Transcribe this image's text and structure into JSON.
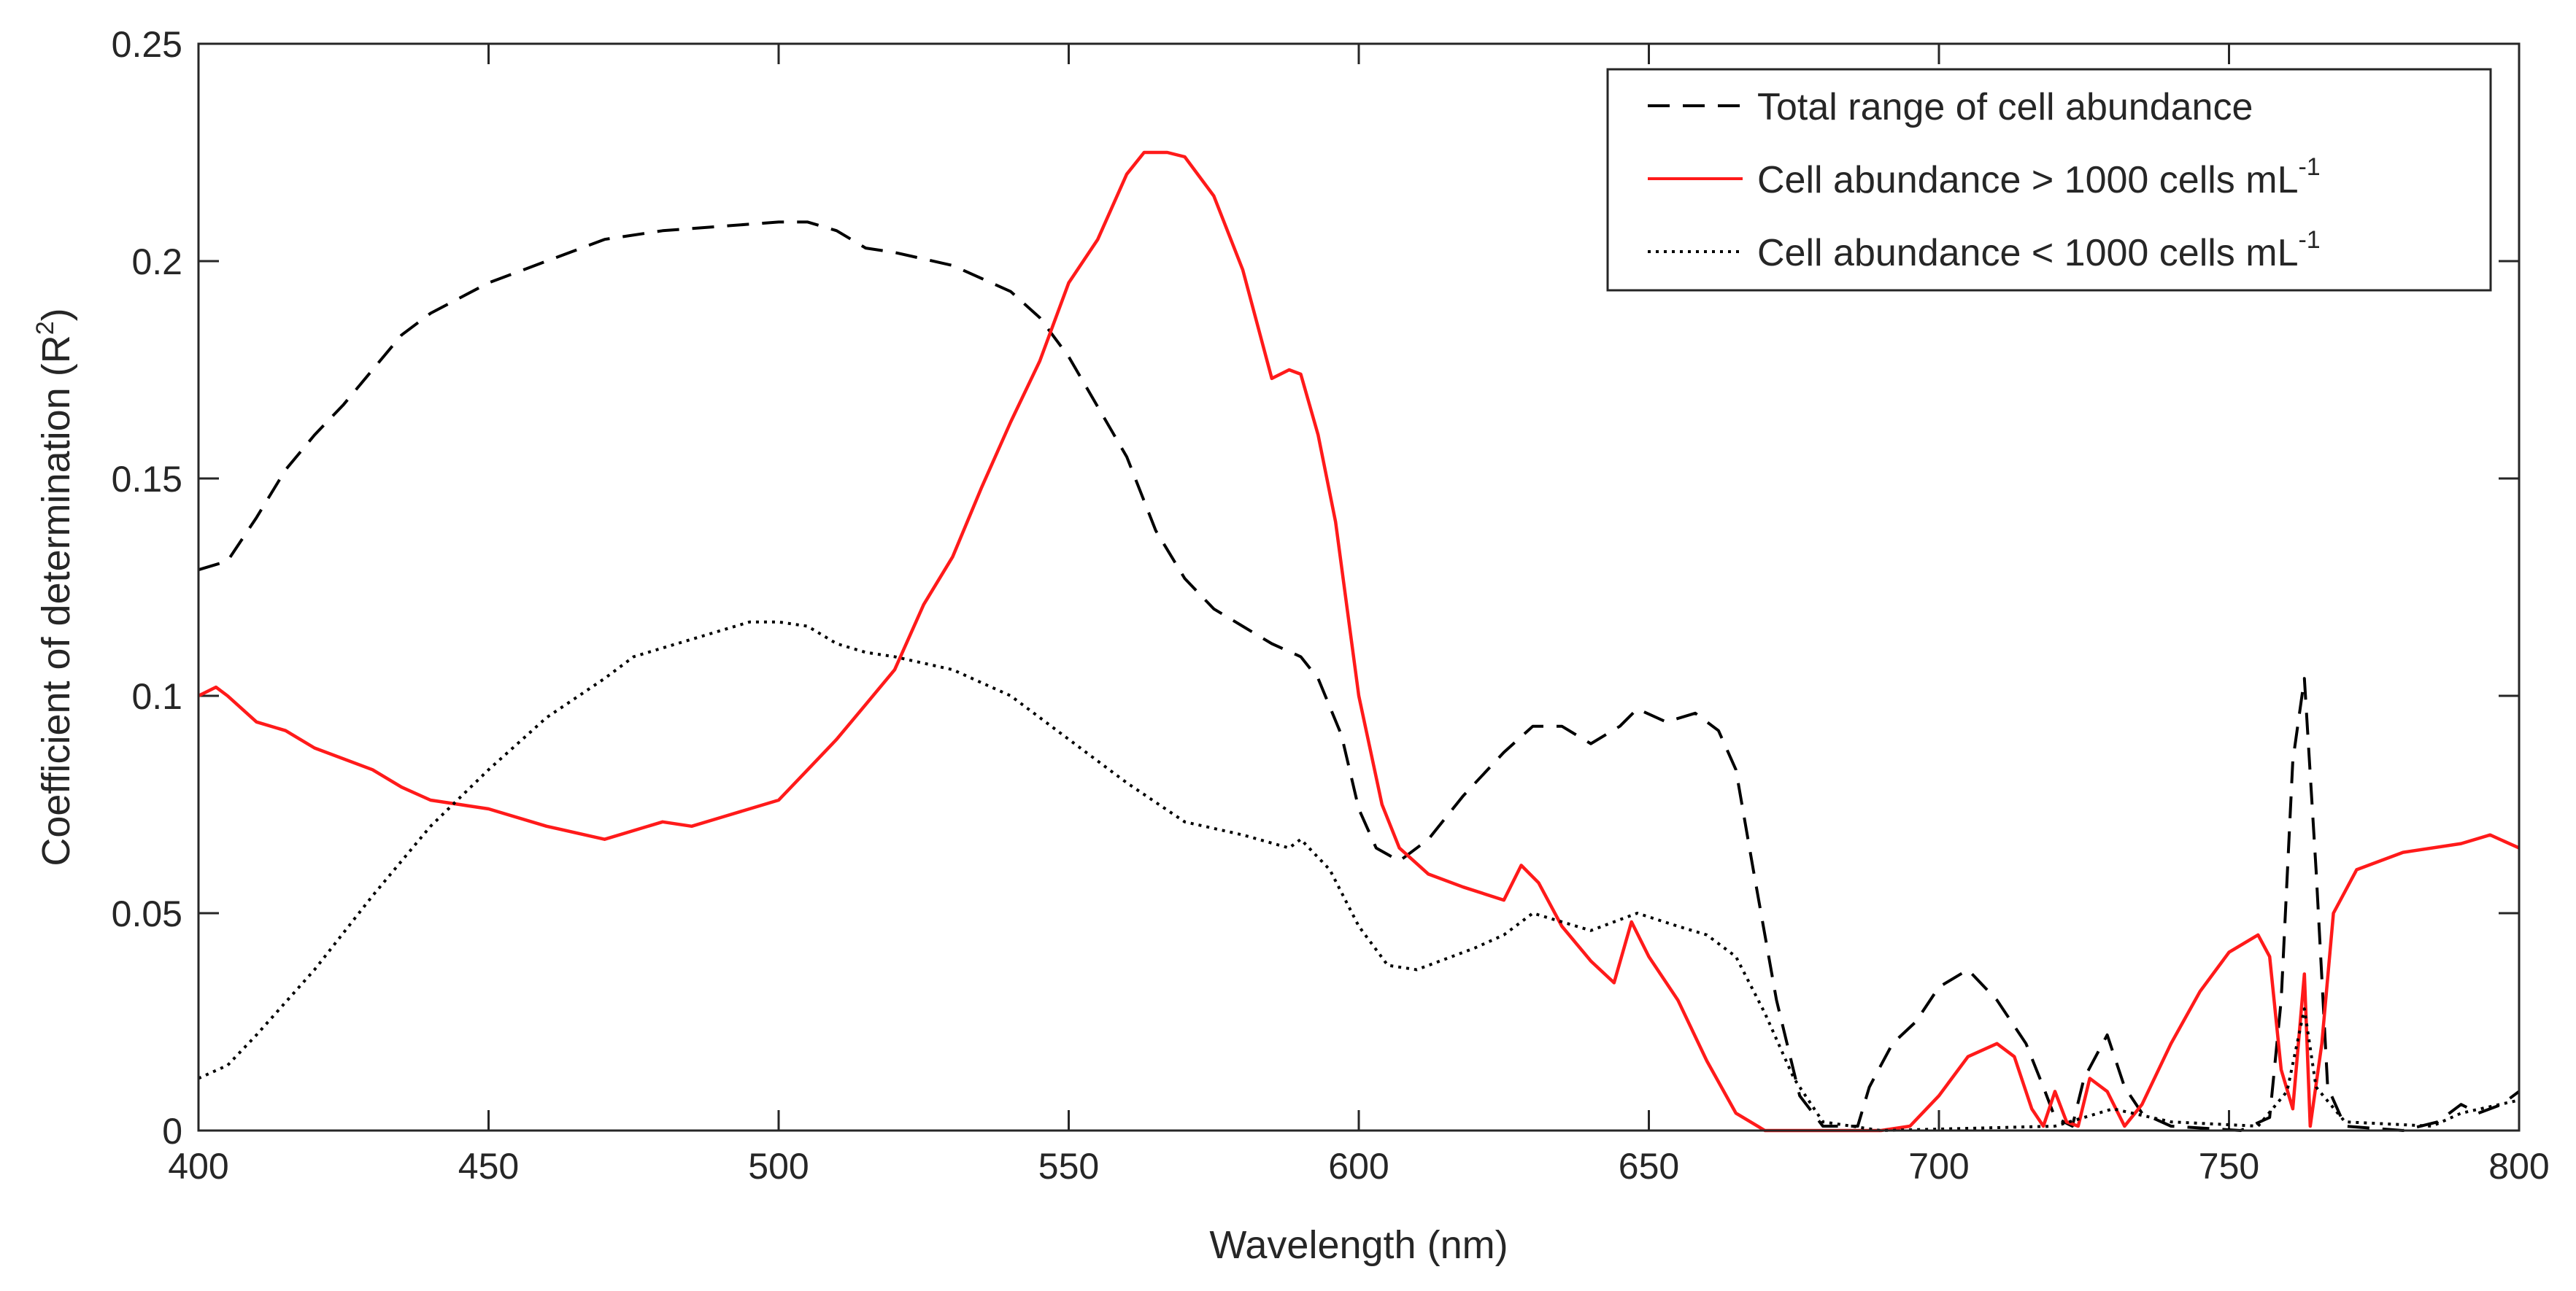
{
  "chart_data": {
    "type": "line",
    "xlabel": "Wavelength (nm)",
    "ylabel": {
      "main": "Coefficient of determination (R",
      "sup": "2",
      "tail": ")"
    },
    "xlim": [
      400,
      800
    ],
    "ylim": [
      0,
      0.25
    ],
    "xticks": [
      400,
      450,
      500,
      550,
      600,
      650,
      700,
      750,
      800
    ],
    "yticks": [
      0,
      0.05,
      0.1,
      0.15,
      0.2,
      0.25
    ],
    "ytick_labels": [
      "0",
      "0.05",
      "0.1",
      "0.15",
      "0.2",
      "0.25"
    ],
    "grid": false,
    "legend_position": "top-right",
    "series": [
      {
        "name": "Total range of cell abundance",
        "legend_main": "Total range of cell abundance",
        "legend_sup": "",
        "color": "#000000",
        "style": "dashed",
        "points": [
          [
            400,
            0.129
          ],
          [
            405,
            0.131
          ],
          [
            410,
            0.141
          ],
          [
            415,
            0.152
          ],
          [
            420,
            0.16
          ],
          [
            425,
            0.167
          ],
          [
            430,
            0.175
          ],
          [
            435,
            0.183
          ],
          [
            440,
            0.188
          ],
          [
            450,
            0.195
          ],
          [
            460,
            0.2
          ],
          [
            470,
            0.205
          ],
          [
            480,
            0.207
          ],
          [
            490,
            0.208
          ],
          [
            500,
            0.209
          ],
          [
            505,
            0.209
          ],
          [
            510,
            0.207
          ],
          [
            515,
            0.203
          ],
          [
            520,
            0.202
          ],
          [
            530,
            0.199
          ],
          [
            540,
            0.193
          ],
          [
            545,
            0.187
          ],
          [
            550,
            0.178
          ],
          [
            560,
            0.155
          ],
          [
            565,
            0.138
          ],
          [
            570,
            0.127
          ],
          [
            575,
            0.12
          ],
          [
            580,
            0.116
          ],
          [
            585,
            0.112
          ],
          [
            590,
            0.109
          ],
          [
            593,
            0.104
          ],
          [
            597,
            0.091
          ],
          [
            600,
            0.074
          ],
          [
            603,
            0.065
          ],
          [
            607,
            0.062
          ],
          [
            612,
            0.067
          ],
          [
            618,
            0.077
          ],
          [
            625,
            0.087
          ],
          [
            630,
            0.093
          ],
          [
            635,
            0.093
          ],
          [
            640,
            0.089
          ],
          [
            645,
            0.093
          ],
          [
            648,
            0.097
          ],
          [
            653,
            0.094
          ],
          [
            658,
            0.096
          ],
          [
            662,
            0.092
          ],
          [
            665,
            0.083
          ],
          [
            668,
            0.06
          ],
          [
            672,
            0.03
          ],
          [
            676,
            0.008
          ],
          [
            680,
            0.001
          ],
          [
            686,
            0.001
          ],
          [
            688,
            0.01
          ],
          [
            692,
            0.02
          ],
          [
            696,
            0.025
          ],
          [
            700,
            0.033
          ],
          [
            705,
            0.037
          ],
          [
            710,
            0.03
          ],
          [
            715,
            0.02
          ],
          [
            718,
            0.01
          ],
          [
            720,
            0.003
          ],
          [
            723,
            0.001
          ],
          [
            725,
            0.012
          ],
          [
            729,
            0.022
          ],
          [
            732,
            0.01
          ],
          [
            735,
            0.004
          ],
          [
            740,
            0.001
          ],
          [
            752,
            0.0
          ],
          [
            757,
            0.003
          ],
          [
            759,
            0.03
          ],
          [
            761,
            0.085
          ],
          [
            763,
            0.104
          ],
          [
            765,
            0.06
          ],
          [
            767,
            0.01
          ],
          [
            770,
            0.001
          ],
          [
            780,
            0.0
          ],
          [
            786,
            0.002
          ],
          [
            790,
            0.006
          ],
          [
            793,
            0.004
          ],
          [
            797,
            0.006
          ],
          [
            800,
            0.009
          ]
        ]
      },
      {
        "name": "Cell abundance > 1000 cells mL-1",
        "legend_main": "Cell abundance > 1000 cells mL",
        "legend_sup": "-1",
        "color": "#ff1a1a",
        "style": "solid",
        "points": [
          [
            400,
            0.1
          ],
          [
            403,
            0.102
          ],
          [
            405,
            0.1
          ],
          [
            410,
            0.094
          ],
          [
            415,
            0.092
          ],
          [
            420,
            0.088
          ],
          [
            430,
            0.083
          ],
          [
            435,
            0.079
          ],
          [
            440,
            0.076
          ],
          [
            450,
            0.074
          ],
          [
            460,
            0.07
          ],
          [
            470,
            0.067
          ],
          [
            480,
            0.071
          ],
          [
            485,
            0.07
          ],
          [
            490,
            0.072
          ],
          [
            500,
            0.076
          ],
          [
            505,
            0.083
          ],
          [
            510,
            0.09
          ],
          [
            515,
            0.098
          ],
          [
            520,
            0.106
          ],
          [
            525,
            0.121
          ],
          [
            530,
            0.132
          ],
          [
            535,
            0.148
          ],
          [
            540,
            0.163
          ],
          [
            545,
            0.177
          ],
          [
            550,
            0.195
          ],
          [
            555,
            0.205
          ],
          [
            560,
            0.22
          ],
          [
            563,
            0.225
          ],
          [
            567,
            0.225
          ],
          [
            570,
            0.224
          ],
          [
            575,
            0.215
          ],
          [
            580,
            0.198
          ],
          [
            585,
            0.173
          ],
          [
            588,
            0.175
          ],
          [
            590,
            0.174
          ],
          [
            593,
            0.16
          ],
          [
            596,
            0.14
          ],
          [
            600,
            0.1
          ],
          [
            604,
            0.075
          ],
          [
            607,
            0.065
          ],
          [
            612,
            0.059
          ],
          [
            618,
            0.056
          ],
          [
            625,
            0.053
          ],
          [
            628,
            0.061
          ],
          [
            631,
            0.057
          ],
          [
            635,
            0.047
          ],
          [
            640,
            0.039
          ],
          [
            644,
            0.034
          ],
          [
            647,
            0.048
          ],
          [
            650,
            0.04
          ],
          [
            655,
            0.03
          ],
          [
            660,
            0.016
          ],
          [
            665,
            0.004
          ],
          [
            670,
            0.0
          ],
          [
            690,
            0.0
          ],
          [
            695,
            0.001
          ],
          [
            700,
            0.008
          ],
          [
            705,
            0.017
          ],
          [
            710,
            0.02
          ],
          [
            713,
            0.017
          ],
          [
            716,
            0.005
          ],
          [
            718,
            0.001
          ],
          [
            720,
            0.009
          ],
          [
            722,
            0.002
          ],
          [
            724,
            0.001
          ],
          [
            726,
            0.012
          ],
          [
            729,
            0.009
          ],
          [
            732,
            0.001
          ],
          [
            735,
            0.006
          ],
          [
            740,
            0.02
          ],
          [
            745,
            0.032
          ],
          [
            750,
            0.041
          ],
          [
            755,
            0.045
          ],
          [
            757,
            0.04
          ],
          [
            759,
            0.014
          ],
          [
            761,
            0.005
          ],
          [
            763,
            0.036
          ],
          [
            764,
            0.001
          ],
          [
            766,
            0.02
          ],
          [
            768,
            0.05
          ],
          [
            772,
            0.06
          ],
          [
            780,
            0.064
          ],
          [
            790,
            0.066
          ],
          [
            795,
            0.068
          ],
          [
            800,
            0.065
          ]
        ]
      },
      {
        "name": "Cell abundance < 1000 cells mL-1",
        "legend_main": "Cell abundance < 1000 cells mL",
        "legend_sup": "-1",
        "color": "#000000",
        "style": "dotted",
        "points": [
          [
            400,
            0.012
          ],
          [
            405,
            0.015
          ],
          [
            410,
            0.022
          ],
          [
            420,
            0.037
          ],
          [
            430,
            0.054
          ],
          [
            440,
            0.07
          ],
          [
            450,
            0.083
          ],
          [
            460,
            0.095
          ],
          [
            470,
            0.104
          ],
          [
            475,
            0.109
          ],
          [
            480,
            0.111
          ],
          [
            490,
            0.115
          ],
          [
            495,
            0.117
          ],
          [
            500,
            0.117
          ],
          [
            505,
            0.116
          ],
          [
            510,
            0.112
          ],
          [
            515,
            0.11
          ],
          [
            520,
            0.109
          ],
          [
            530,
            0.106
          ],
          [
            540,
            0.1
          ],
          [
            550,
            0.09
          ],
          [
            560,
            0.08
          ],
          [
            570,
            0.071
          ],
          [
            580,
            0.068
          ],
          [
            588,
            0.065
          ],
          [
            590,
            0.067
          ],
          [
            595,
            0.06
          ],
          [
            600,
            0.047
          ],
          [
            605,
            0.038
          ],
          [
            610,
            0.037
          ],
          [
            620,
            0.042
          ],
          [
            625,
            0.045
          ],
          [
            630,
            0.05
          ],
          [
            640,
            0.046
          ],
          [
            648,
            0.05
          ],
          [
            655,
            0.047
          ],
          [
            660,
            0.045
          ],
          [
            665,
            0.04
          ],
          [
            670,
            0.027
          ],
          [
            675,
            0.012
          ],
          [
            680,
            0.002
          ],
          [
            690,
            0.0
          ],
          [
            720,
            0.001
          ],
          [
            730,
            0.005
          ],
          [
            740,
            0.002
          ],
          [
            755,
            0.001
          ],
          [
            760,
            0.009
          ],
          [
            763,
            0.028
          ],
          [
            765,
            0.01
          ],
          [
            770,
            0.002
          ],
          [
            785,
            0.001
          ],
          [
            790,
            0.004
          ],
          [
            800,
            0.007
          ]
        ]
      }
    ]
  }
}
